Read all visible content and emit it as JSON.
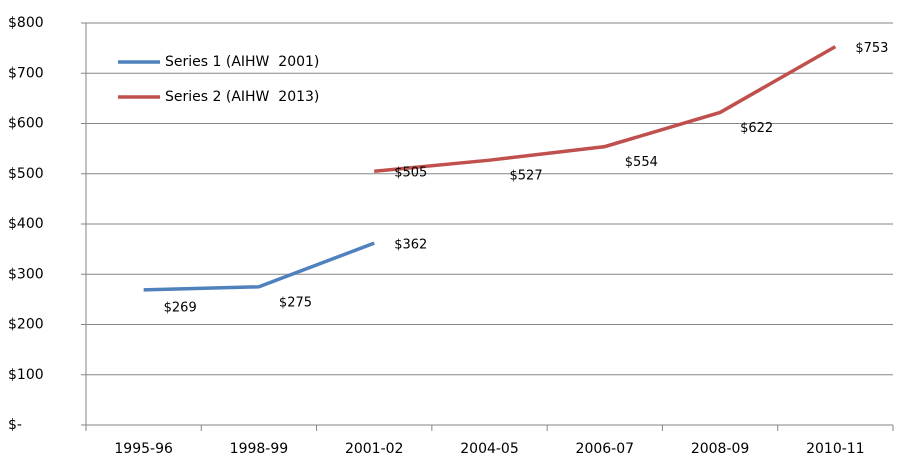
{
  "chart_data": {
    "type": "line",
    "categories": [
      "1995-96",
      "1998-99",
      "2001-02",
      "2004-05",
      "2006-07",
      "2008-09",
      "2010-11"
    ],
    "series": [
      {
        "name": "Series 1 (AIHW  2001)",
        "color": "#4f81bd",
        "values": [
          269,
          275,
          362,
          null,
          null,
          null,
          null
        ],
        "value_labels": [
          "$269",
          "$275",
          "$362",
          null,
          null,
          null,
          null
        ]
      },
      {
        "name": "Series 2 (AIHW  2013)",
        "color": "#c0504d",
        "values": [
          null,
          null,
          505,
          527,
          554,
          622,
          753
        ],
        "value_labels": [
          null,
          null,
          "$505",
          "$527",
          "$554",
          "$622",
          "$753"
        ]
      }
    ],
    "ylim": [
      0,
      800
    ],
    "yticks": [
      {
        "value": 0,
        "label": "$-"
      },
      {
        "value": 100,
        "label": "$100"
      },
      {
        "value": 200,
        "label": "$200"
      },
      {
        "value": 300,
        "label": "$300"
      },
      {
        "value": 400,
        "label": "$400"
      },
      {
        "value": 500,
        "label": "$500"
      },
      {
        "value": 600,
        "label": "$600"
      },
      {
        "value": 700,
        "label": "$700"
      },
      {
        "value": 800,
        "label": "$800"
      }
    ],
    "grid": true,
    "legend": "top-left"
  }
}
